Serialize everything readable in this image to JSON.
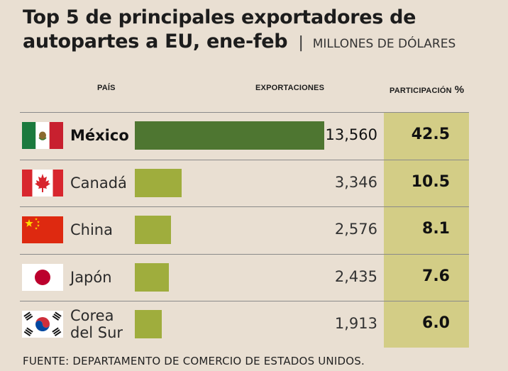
{
  "title_line1": "Top 5 de principales exportadores de",
  "title_line2": "autopartes a EU, ene-feb",
  "separator": "|",
  "unit": "MILLONES DE DÓLARES",
  "headers": {
    "country": "PAÍS",
    "exports": "EXPORTACIONES",
    "share": "PARTICIPACIÓN",
    "share_unit": "%"
  },
  "source": "FUENTE: DEPARTAMENTO DE COMERCIO DE ESTADOS UNIDOS.",
  "colors": {
    "leader_bar": "#4e7631",
    "bar": "#9fad3d",
    "share_column": "#d3cd86",
    "background": "#e9dfd2"
  },
  "chart_data": {
    "type": "bar",
    "orientation": "horizontal",
    "categories": [
      "México",
      "Canadá",
      "China",
      "Japón",
      "Corea del Sur"
    ],
    "rows": [
      {
        "country_lines": [
          "México"
        ],
        "exports": "13,560",
        "share": "42.5",
        "flag": "mexico-flag-icon"
      },
      {
        "country_lines": [
          "Canadá"
        ],
        "exports": "3,346",
        "share": "10.5",
        "flag": "canada-flag-icon"
      },
      {
        "country_lines": [
          "China"
        ],
        "exports": "2,576",
        "share": "8.1",
        "flag": "china-flag-icon"
      },
      {
        "country_lines": [
          "Japón"
        ],
        "exports": "2,435",
        "share": "7.6",
        "flag": "japan-flag-icon"
      },
      {
        "country_lines": [
          "Corea",
          "del Sur"
        ],
        "exports": "1,913",
        "share": "6.0",
        "flag": "south-korea-flag-icon"
      }
    ],
    "series": [
      {
        "values": [
          13560,
          3346,
          2576,
          2435,
          1913
        ]
      }
    ],
    "share_values": [
      42.5,
      10.5,
      8.1,
      7.6,
      6.0
    ],
    "xlim": [
      0,
      13560
    ]
  }
}
